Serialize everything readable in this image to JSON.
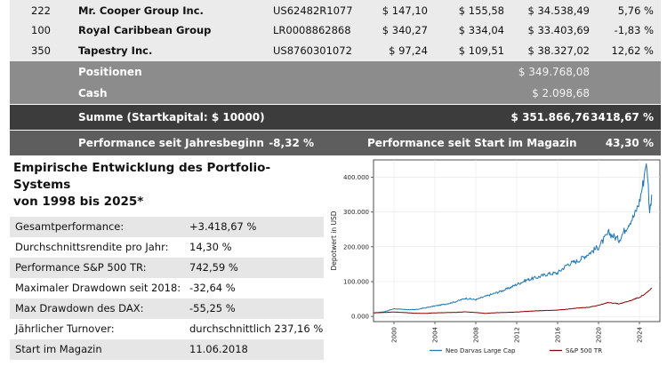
{
  "holdings": [
    {
      "qty": "222",
      "name": "Mr. Cooper Group Inc.",
      "isin": "US62482R1077",
      "price_buy": "$ 147,10",
      "price_now": "$ 155,58",
      "value": "$ 34.538,49",
      "pct": "5,76 %"
    },
    {
      "qty": "100",
      "name": "Royal Caribbean Group",
      "isin": "LR0008862868",
      "price_buy": "$ 340,27",
      "price_now": "$ 334,04",
      "value": "$ 33.403,69",
      "pct": "-1,83 %"
    },
    {
      "qty": "350",
      "name": "Tapestry Inc.",
      "isin": "US8760301072",
      "price_buy": "$ 97,24",
      "price_now": "$ 109,51",
      "value": "$ 38.327,02",
      "pct": "12,62 %"
    }
  ],
  "summary": {
    "positions_label": "Positionen",
    "positions_value": "$ 349.768,08",
    "cash_label": "Cash",
    "cash_value": "$ 2.098,68",
    "sum_label": "Summe (Startkapital: $ 10000)",
    "sum_value": "$ 351.866,76",
    "sum_pct": "3418,67 %",
    "perf_ytd_label": "Performance seit Jahresbeginn",
    "perf_ytd_value": "-8,32 %",
    "perf_start_label": "Performance seit Start im Magazin",
    "perf_start_value": "43,30 %"
  },
  "stats": {
    "title_line1": "Empirische Entwicklung des Portfolio-Systems",
    "title_line2": "von 1998 bis 2025*",
    "rows": [
      {
        "label": "Gesamtperformance:",
        "value": "+3.418,67 %"
      },
      {
        "label": "Durchschnittsrendite pro Jahr:",
        "value": "14,30 %"
      },
      {
        "label": "Performance S&P 500 TR:",
        "value": "742,59 %"
      },
      {
        "label": "Maximaler Drawdown seit 2018:",
        "value": "-32,64 %"
      },
      {
        "label": "Max Drawdown des DAX:",
        "value": "-55,25 %"
      },
      {
        "label": "Jährlicher Turnover:",
        "value": "durchschnittlich 237,16 %"
      },
      {
        "label": "Start im Magazin",
        "value": "11.06.2018"
      }
    ]
  },
  "chart_data": {
    "type": "line",
    "ylabel": "Depotwert in USD",
    "xlabel": "",
    "xlim": [
      1998,
      2026
    ],
    "ylim": [
      -15000,
      450000
    ],
    "x_ticks": [
      "2000",
      "2004",
      "2008",
      "2012",
      "2016",
      "2020",
      "2024"
    ],
    "y_ticks": [
      "0.000",
      "100.000",
      "200.000",
      "300.000",
      "400.000"
    ],
    "y_tick_values": [
      0,
      100000,
      200000,
      300000,
      400000
    ],
    "legend_position": "bottom",
    "series": [
      {
        "name": "Neo Darvas Large Cap",
        "color": "#1f77b4",
        "points": [
          [
            1998,
            10000
          ],
          [
            1999,
            13000
          ],
          [
            2000,
            22000
          ],
          [
            2001,
            20000
          ],
          [
            2002,
            19000
          ],
          [
            2003,
            24000
          ],
          [
            2004,
            30000
          ],
          [
            2005,
            35000
          ],
          [
            2006,
            42000
          ],
          [
            2007,
            52000
          ],
          [
            2008,
            48000
          ],
          [
            2009,
            58000
          ],
          [
            2010,
            68000
          ],
          [
            2011,
            78000
          ],
          [
            2012,
            92000
          ],
          [
            2013,
            105000
          ],
          [
            2014,
            112000
          ],
          [
            2015,
            122000
          ],
          [
            2016,
            125000
          ],
          [
            2017,
            150000
          ],
          [
            2018,
            160000
          ],
          [
            2019,
            180000
          ],
          [
            2020,
            200000
          ],
          [
            2021,
            240000
          ],
          [
            2022,
            220000
          ],
          [
            2023,
            270000
          ],
          [
            2023.5,
            290000
          ],
          [
            2024,
            330000
          ],
          [
            2024.4,
            390000
          ],
          [
            2024.6,
            440000
          ],
          [
            2024.8,
            410000
          ],
          [
            2025,
            300000
          ],
          [
            2025.2,
            350000
          ]
        ]
      },
      {
        "name": "S&P 500 TR",
        "color": "#8b0000",
        "points": [
          [
            1998,
            10000
          ],
          [
            2000,
            12500
          ],
          [
            2001,
            11000
          ],
          [
            2002,
            9000
          ],
          [
            2003,
            8500
          ],
          [
            2004,
            10000
          ],
          [
            2006,
            11500
          ],
          [
            2007,
            13000
          ],
          [
            2008,
            11000
          ],
          [
            2009,
            8500
          ],
          [
            2010,
            10500
          ],
          [
            2012,
            12500
          ],
          [
            2014,
            16000
          ],
          [
            2016,
            18000
          ],
          [
            2018,
            24000
          ],
          [
            2019,
            26000
          ],
          [
            2020,
            32000
          ],
          [
            2021,
            40000
          ],
          [
            2022,
            36000
          ],
          [
            2023,
            44000
          ],
          [
            2024,
            55000
          ],
          [
            2024.6,
            65000
          ],
          [
            2025,
            75000
          ],
          [
            2025.2,
            82000
          ]
        ]
      }
    ]
  }
}
